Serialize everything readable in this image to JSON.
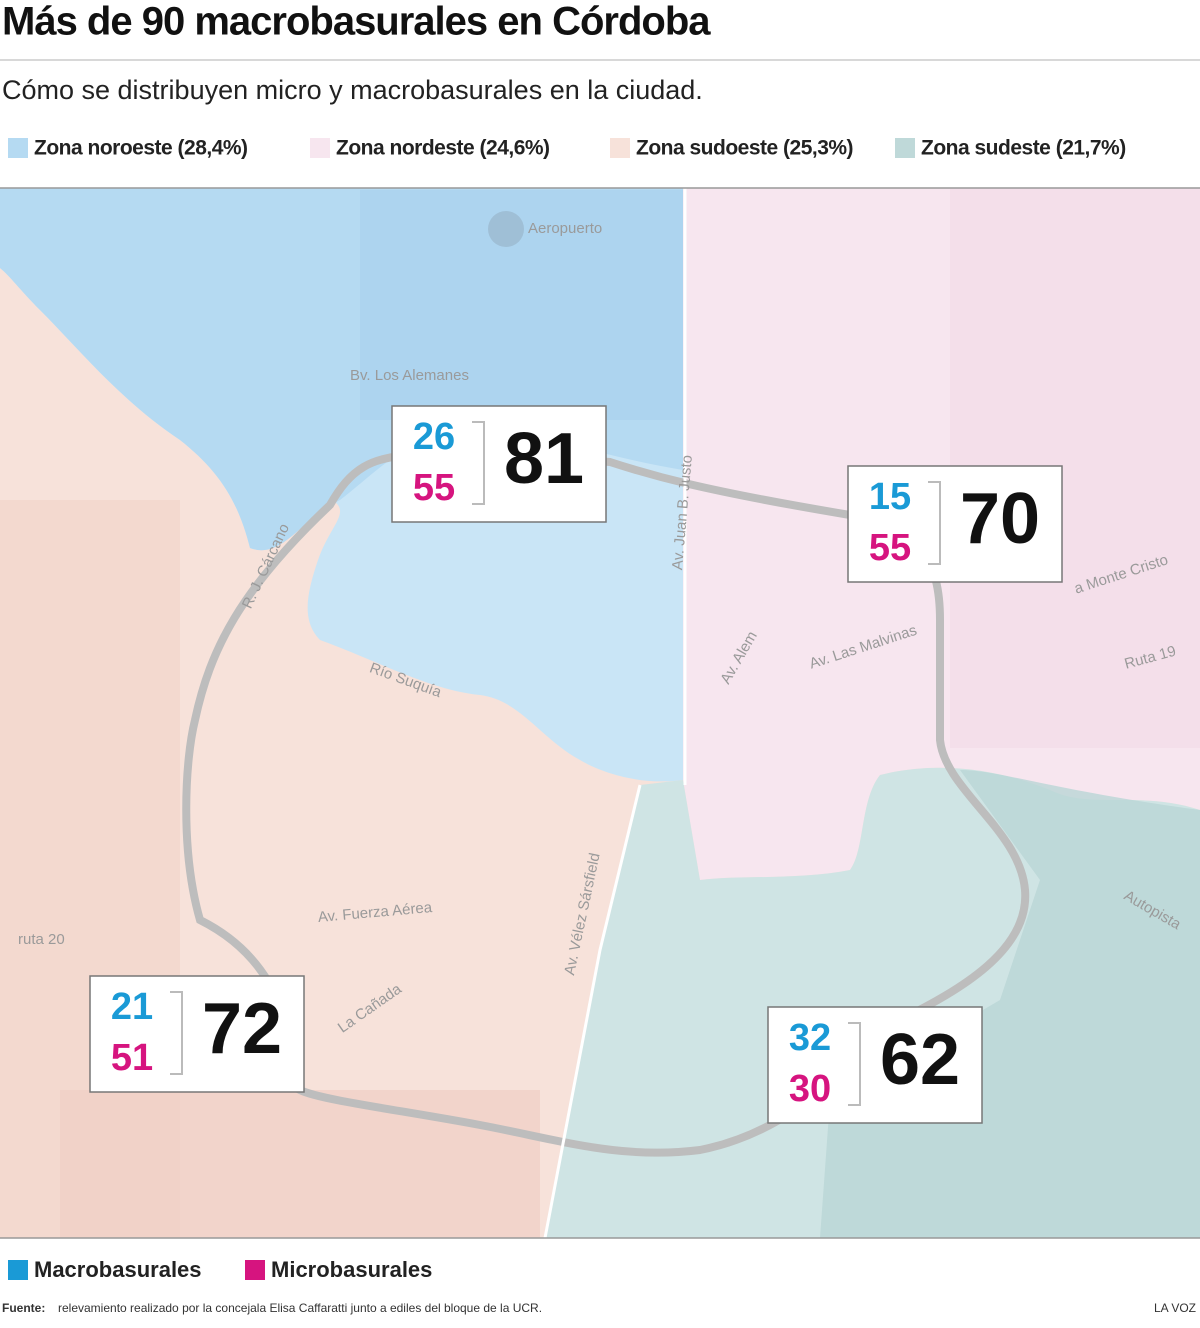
{
  "header": {
    "title": "Más de 90 macrobasurales en Córdoba",
    "subtitle": "Cómo se distribuyen micro y macrobasurales en la ciudad."
  },
  "zones_legend": [
    "Zona noroeste (28,4%)",
    "Zona nordeste (24,6%)",
    "Zona sudoeste (25,3%)",
    "Zona sudeste (21,7%)"
  ],
  "map_labels": [
    "Aeropuerto",
    "Bv. Los Alemanes",
    "Av. Juan B. Justo",
    "R. J. Cárcano",
    "Río Suquía",
    "Av. Alem",
    "Av. Las Malvinas",
    "a Monte Cristo",
    "Ruta 19",
    "Av. Fuerza Aérea",
    "ruta 20",
    "La Cañada",
    "Av. Vélez Sársfield",
    "Autopista"
  ],
  "zones": [
    {
      "macro": 26,
      "micro": 55,
      "total": 81
    },
    {
      "macro": 15,
      "micro": 55,
      "total": 70
    },
    {
      "macro": 21,
      "micro": 51,
      "total": 72
    },
    {
      "macro": 32,
      "micro": 30,
      "total": 62
    }
  ],
  "legend": [
    "Macrobasurales",
    "Microbasurales"
  ],
  "footer": {
    "source_label": "Fuente:",
    "source": "relevamiento realizado por la concejala Elisa Caffaratti junto a ediles del bloque de la UCR.",
    "brand": "LA VOZ"
  }
}
